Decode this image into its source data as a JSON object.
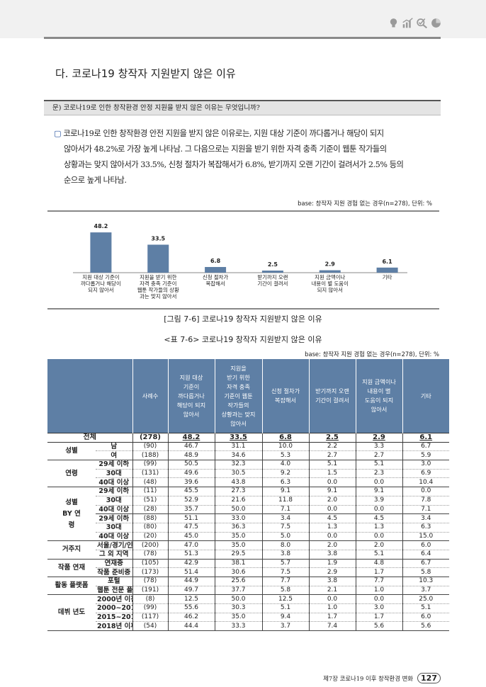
{
  "section_title": "다. 코로나19 창작자 지원받지 않은 이유",
  "question": "문) 코로나19로 인한 창작환경 안정 지원을 받지 않은 이유는 무엇입니까?",
  "paragraph": {
    "bullet": "▢",
    "line1": "코로나19로 인한 창작환경 안전 지원을 받지 않은 이유로는, 지원 대상 기준이 까다롭거나 해당이 되지",
    "line2": "않아서가 48.2%로 가장 높게 나타남. 그 다음으로는 지원을 받기 위한 자격 충족 기준이 웹툰 작가들의",
    "line3": "상황과는 맞지 않아서가 33.5%, 신청 절차가 복잡해서가 6.8%, 받기까지 오랜 기간이 걸려서가 2.5% 등의",
    "line4": "순으로 높게 나타남."
  },
  "chart_base": "base: 창작자 지원 경험 없는 경우(n=278), 단위: %",
  "chart_data": {
    "type": "bar",
    "categories": [
      [
        "지원 대상 기준이",
        "까다롭거나 해당이",
        "되지 않아서"
      ],
      [
        "지원을 받기 위한",
        "자격 충족 기준이",
        "웹툰 작가들의 상황",
        "과는 맞지 않아서"
      ],
      [
        "신청 절차가",
        "복잡해서"
      ],
      [
        "받기까지 오랜",
        "기간이 걸려서"
      ],
      [
        "지원 금액이나",
        "내용이 별 도움이",
        "되지 않아서"
      ],
      [
        "기타"
      ]
    ],
    "values": [
      48.2,
      33.5,
      6.8,
      2.5,
      2.9,
      6.1
    ],
    "value_labels": [
      "48.2",
      "33.5",
      "6.8",
      "2.5",
      "2.9",
      "6.1"
    ],
    "ylim": [
      0,
      50
    ],
    "title": "",
    "xlabel": "",
    "ylabel": "",
    "grid": false,
    "bar_color": "#5e7fa5"
  },
  "figure_caption": "[그림 7-6] 코로나19 창작자 지원받지 않은 이유",
  "table_caption": "<표 7-6> 코로나19 창작자 지원받지 않은 이유",
  "table_base": "base: 창작자 지원 경험 없는 경우(n=278), 단위: %",
  "table": {
    "headers": [
      "사례수",
      "지원 대상 기준이 까다롭거나 해당이 되지 않아서",
      "지원을 받기 위한 자격 충족 기준이 웹툰 작가들의 상황과는 맞지 않아서",
      "신청 절차가 복잡해서",
      "받기까지 오랜 기간이 걸려서",
      "지원 금액이나 내용이 별 도움이 되지 않아서",
      "기타"
    ],
    "header_color": "#5e7fa5",
    "total": {
      "label": "전체",
      "n": "(278)",
      "v": [
        "48.2",
        "33.5",
        "6.8",
        "2.5",
        "2.9",
        "6.1"
      ]
    },
    "gender": {
      "group": "성별",
      "rows": [
        {
          "label": "남",
          "n": "(90)",
          "v": [
            "46.7",
            "31.1",
            "10.0",
            "2.2",
            "3.3",
            "6.7"
          ]
        },
        {
          "label": "여",
          "n": "(188)",
          "v": [
            "48.9",
            "34.6",
            "5.3",
            "2.7",
            "2.7",
            "5.9"
          ]
        }
      ]
    },
    "age": {
      "group": "연령",
      "rows": [
        {
          "label": "29세 이하",
          "n": "(99)",
          "v": [
            "50.5",
            "32.3",
            "4.0",
            "5.1",
            "5.1",
            "3.0"
          ]
        },
        {
          "label": "30대",
          "n": "(131)",
          "v": [
            "49.6",
            "30.5",
            "9.2",
            "1.5",
            "2.3",
            "6.9"
          ]
        },
        {
          "label": "40대 이상",
          "n": "(48)",
          "v": [
            "39.6",
            "43.8",
            "6.3",
            "0.0",
            "0.0",
            "10.4"
          ]
        }
      ]
    },
    "gender_age": {
      "group": "성별 BY 연령",
      "male": "남",
      "female": "여",
      "male_rows": [
        {
          "label": "29세 이하",
          "n": "(11)",
          "v": [
            "45.5",
            "27.3",
            "9.1",
            "9.1",
            "9.1",
            "0.0"
          ]
        },
        {
          "label": "30대",
          "n": "(51)",
          "v": [
            "52.9",
            "21.6",
            "11.8",
            "2.0",
            "3.9",
            "7.8"
          ]
        },
        {
          "label": "40대 이상",
          "n": "(28)",
          "v": [
            "35.7",
            "50.0",
            "7.1",
            "0.0",
            "0.0",
            "7.1"
          ]
        }
      ],
      "female_rows": [
        {
          "label": "29세 이하",
          "n": "(88)",
          "v": [
            "51.1",
            "33.0",
            "3.4",
            "4.5",
            "4.5",
            "3.4"
          ]
        },
        {
          "label": "30대",
          "n": "(80)",
          "v": [
            "47.5",
            "36.3",
            "7.5",
            "1.3",
            "1.3",
            "6.3"
          ]
        },
        {
          "label": "40대 이상",
          "n": "(20)",
          "v": [
            "45.0",
            "35.0",
            "5.0",
            "0.0",
            "0.0",
            "15.0"
          ]
        }
      ]
    },
    "residence": {
      "group": "거주지",
      "rows": [
        {
          "label": "서울/경기/인천",
          "n": "(200)",
          "v": [
            "47.0",
            "35.0",
            "8.0",
            "2.0",
            "2.0",
            "6.0"
          ]
        },
        {
          "label": "그 외 지역",
          "n": "(78)",
          "v": [
            "51.3",
            "29.5",
            "3.8",
            "3.8",
            "5.1",
            "6.4"
          ]
        }
      ]
    },
    "work": {
      "group": "작품 연재",
      "rows": [
        {
          "label": "연재중",
          "n": "(105)",
          "v": [
            "42.9",
            "38.1",
            "5.7",
            "1.9",
            "4.8",
            "6.7"
          ]
        },
        {
          "label": "작품 준비중",
          "n": "(173)",
          "v": [
            "51.4",
            "30.6",
            "7.5",
            "2.9",
            "1.7",
            "5.8"
          ]
        }
      ]
    },
    "platform": {
      "group": "활동 플랫폼",
      "rows": [
        {
          "label": "포털",
          "n": "(78)",
          "v": [
            "44.9",
            "25.6",
            "7.7",
            "3.8",
            "7.7",
            "10.3"
          ]
        },
        {
          "label": "웹툰 전문 플랫폼",
          "n": "(191)",
          "v": [
            "49.7",
            "37.7",
            "5.8",
            "2.1",
            "1.0",
            "3.7"
          ]
        }
      ]
    },
    "debut": {
      "group": "데뷔 년도",
      "rows": [
        {
          "label": "2000년 이전",
          "n": "(8)",
          "v": [
            "12.5",
            "50.0",
            "12.5",
            "0.0",
            "0.0",
            "25.0"
          ]
        },
        {
          "label": "2000~2014년",
          "n": "(99)",
          "v": [
            "55.6",
            "30.3",
            "5.1",
            "1.0",
            "3.0",
            "5.1"
          ]
        },
        {
          "label": "2015~2017년",
          "n": "(117)",
          "v": [
            "46.2",
            "35.0",
            "9.4",
            "1.7",
            "1.7",
            "6.0"
          ]
        },
        {
          "label": "2018년 이후",
          "n": "(54)",
          "v": [
            "44.4",
            "33.3",
            "3.7",
            "7.4",
            "5.6",
            "5.6"
          ]
        }
      ]
    }
  },
  "footer": {
    "chapter": "제7장 코로나19 이후 창작환경 변화",
    "page": "127"
  },
  "header_icons": [
    "lightbulb-icon",
    "bar-chart-icon",
    "check-magnifier-icon",
    "pie-chart-icon"
  ]
}
